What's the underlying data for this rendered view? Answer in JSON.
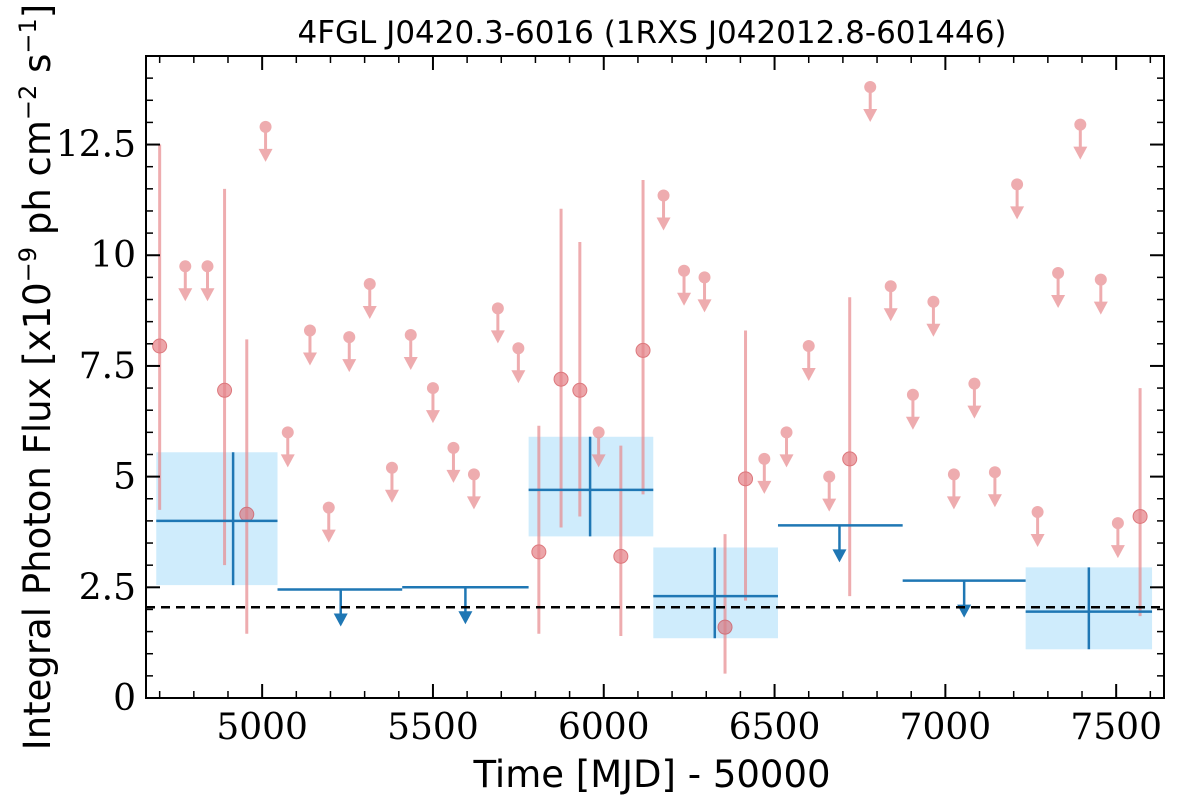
{
  "chart_data": {
    "type": "scatter",
    "title": "4FGL J0420.3-6016 (1RXS J042012.8-601446)",
    "xlabel": "Time [MJD] - 50000",
    "ylabel": "Integral Photon Flux [x10^-9 ph cm^-2 s^-1]",
    "xlim": [
      4660,
      7640
    ],
    "ylim": [
      0,
      14.5
    ],
    "x_ticks": [
      5000,
      5500,
      6000,
      6500,
      7000,
      7500
    ],
    "x_tick_labels": [
      "5000",
      "5500",
      "6000",
      "6500",
      "7000",
      "7500"
    ],
    "y_ticks": [
      0,
      2.5,
      5,
      7.5,
      10,
      12.5
    ],
    "y_tick_labels": [
      "0",
      "2.5",
      "5",
      "7.5",
      "10",
      "12.5"
    ],
    "grid": false,
    "reference_line": {
      "y": 2.05,
      "style": "dashed",
      "color": "#000000"
    },
    "colors": {
      "monthly": "#e88a8e",
      "binned": "#1f77b4",
      "binned_fill": "#bfe6fb"
    },
    "series": [
      {
        "kind": "monthly_detections",
        "points": [
          {
            "x": 4700,
            "y": 7.95,
            "lo": 4.25,
            "hi": 12.5
          },
          {
            "x": 4890,
            "y": 6.95,
            "lo": 3.0,
            "hi": 11.5
          },
          {
            "x": 4955,
            "y": 4.15,
            "lo": 1.45,
            "hi": 8.1
          },
          {
            "x": 5810,
            "y": 3.3,
            "lo": 1.45,
            "hi": 6.15
          },
          {
            "x": 5875,
            "y": 7.2,
            "lo": 3.85,
            "hi": 11.05
          },
          {
            "x": 5930,
            "y": 6.95,
            "lo": 4.1,
            "hi": 10.3
          },
          {
            "x": 6050,
            "y": 3.2,
            "lo": 1.4,
            "hi": 5.7
          },
          {
            "x": 6115,
            "y": 7.85,
            "lo": 4.6,
            "hi": 11.7
          },
          {
            "x": 6355,
            "y": 1.6,
            "lo": 0.55,
            "hi": 3.7
          },
          {
            "x": 6415,
            "y": 4.95,
            "lo": 2.2,
            "hi": 8.3
          },
          {
            "x": 6720,
            "y": 5.4,
            "lo": 2.3,
            "hi": 9.05
          },
          {
            "x": 7570,
            "y": 4.1,
            "lo": 1.85,
            "hi": 7.0
          }
        ]
      },
      {
        "kind": "monthly_upper_limits",
        "points": [
          {
            "x": 4775,
            "y": 9.75
          },
          {
            "x": 4840,
            "y": 9.75
          },
          {
            "x": 5010,
            "y": 12.9
          },
          {
            "x": 5075,
            "y": 6.0
          },
          {
            "x": 5140,
            "y": 8.3
          },
          {
            "x": 5195,
            "y": 4.3
          },
          {
            "x": 5255,
            "y": 8.15
          },
          {
            "x": 5315,
            "y": 9.35
          },
          {
            "x": 5380,
            "y": 5.2
          },
          {
            "x": 5435,
            "y": 8.2
          },
          {
            "x": 5500,
            "y": 7.0
          },
          {
            "x": 5560,
            "y": 5.65
          },
          {
            "x": 5620,
            "y": 5.05
          },
          {
            "x": 5690,
            "y": 8.8
          },
          {
            "x": 5750,
            "y": 7.9
          },
          {
            "x": 5985,
            "y": 6.0
          },
          {
            "x": 6175,
            "y": 11.35
          },
          {
            "x": 6235,
            "y": 9.65
          },
          {
            "x": 6295,
            "y": 9.5
          },
          {
            "x": 6470,
            "y": 5.4
          },
          {
            "x": 6535,
            "y": 6.0
          },
          {
            "x": 6600,
            "y": 7.95
          },
          {
            "x": 6660,
            "y": 5.0
          },
          {
            "x": 6780,
            "y": 13.8
          },
          {
            "x": 6840,
            "y": 9.3
          },
          {
            "x": 6905,
            "y": 6.85
          },
          {
            "x": 6965,
            "y": 8.95
          },
          {
            "x": 7025,
            "y": 5.05
          },
          {
            "x": 7085,
            "y": 7.1
          },
          {
            "x": 7145,
            "y": 5.1
          },
          {
            "x": 7210,
            "y": 11.6
          },
          {
            "x": 7270,
            "y": 4.2
          },
          {
            "x": 7330,
            "y": 9.6
          },
          {
            "x": 7395,
            "y": 12.95
          },
          {
            "x": 7455,
            "y": 9.45
          },
          {
            "x": 7505,
            "y": 3.95
          }
        ]
      },
      {
        "kind": "binned_detections",
        "points": [
          {
            "x0": 4690,
            "x1": 5045,
            "x": 4915,
            "y": 4.0,
            "lo": 2.55,
            "hi": 5.55
          },
          {
            "x0": 5780,
            "x1": 6145,
            "x": 5960,
            "y": 4.7,
            "lo": 3.65,
            "hi": 5.9
          },
          {
            "x0": 6145,
            "x1": 6510,
            "x": 6325,
            "y": 2.3,
            "lo": 1.35,
            "hi": 3.4
          },
          {
            "x0": 7235,
            "x1": 7605,
            "x": 7420,
            "y": 1.95,
            "lo": 1.1,
            "hi": 2.95
          }
        ]
      },
      {
        "kind": "binned_upper_limits",
        "points": [
          {
            "x0": 5045,
            "x1": 5410,
            "x": 5230,
            "y": 2.45
          },
          {
            "x0": 5410,
            "x1": 5780,
            "x": 5595,
            "y": 2.5
          },
          {
            "x0": 6510,
            "x1": 6875,
            "x": 6690,
            "y": 3.9
          },
          {
            "x0": 6875,
            "x1": 7235,
            "x": 7055,
            "y": 2.65
          }
        ]
      }
    ]
  }
}
